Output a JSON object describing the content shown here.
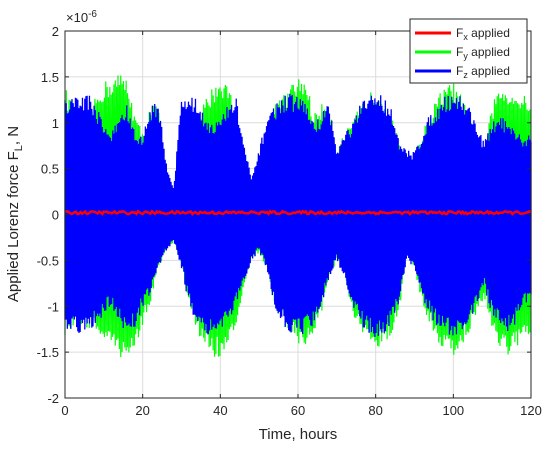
{
  "chart_data": {
    "type": "line",
    "xlabel": "Time, hours",
    "ylabel_main": "Applied Lorenz force F",
    "ylabel_sub": "L",
    "ylabel_tail": ", N",
    "exponent_prefix": "×10",
    "exponent_power": "-6",
    "xlim": [
      0,
      120
    ],
    "ylim": [
      -2,
      2
    ],
    "x_ticks": [
      0,
      20,
      40,
      60,
      80,
      100,
      120
    ],
    "x_tick_labels": [
      "0",
      "20",
      "40",
      "60",
      "80",
      "100",
      "120"
    ],
    "y_ticks": [
      -2,
      -1.5,
      -1,
      -0.5,
      0,
      0.5,
      1,
      1.5,
      2
    ],
    "y_tick_labels": [
      "-2",
      "-1.5",
      "-1",
      "-0.5",
      "0",
      "0.5",
      "1",
      "1.5",
      "2"
    ],
    "grid": true,
    "legend_position": "top-right",
    "legend": [
      {
        "main": "F",
        "sub": "x",
        "tail": " applied",
        "color": "#ff0000"
      },
      {
        "main": "F",
        "sub": "y",
        "tail": " applied",
        "color": "#00ff00"
      },
      {
        "main": "F",
        "sub": "z",
        "tail": " applied",
        "color": "#0000ff"
      }
    ],
    "series": [
      {
        "key": "Fy",
        "color": "#00ff00",
        "note_values": "upper envelope of oscillation amplitude (x10^-6) vs time (hours); signal oscillates roughly symmetric about zero",
        "envelope_upper": [
          [
            0,
            1.4
          ],
          [
            2,
            1.2
          ],
          [
            4,
            1.1
          ],
          [
            6,
            1.05
          ],
          [
            8,
            1.3
          ],
          [
            10,
            1.45
          ],
          [
            12,
            1.5
          ],
          [
            14,
            1.55
          ],
          [
            16,
            1.5
          ],
          [
            18,
            1.1
          ],
          [
            20,
            0.9
          ],
          [
            22,
            1.2
          ],
          [
            24,
            1.2
          ],
          [
            26,
            0.4
          ],
          [
            28,
            0.3
          ],
          [
            30,
            0.5
          ],
          [
            32,
            1.0
          ],
          [
            34,
            1.0
          ],
          [
            36,
            1.25
          ],
          [
            38,
            1.4
          ],
          [
            40,
            1.5
          ],
          [
            42,
            1.45
          ],
          [
            44,
            1.1
          ],
          [
            46,
            0.6
          ],
          [
            48,
            0.3
          ],
          [
            50,
            0.4
          ],
          [
            52,
            1.0
          ],
          [
            54,
            1.2
          ],
          [
            56,
            1.3
          ],
          [
            58,
            1.4
          ],
          [
            60,
            1.5
          ],
          [
            62,
            1.5
          ],
          [
            64,
            1.1
          ],
          [
            66,
            1.2
          ],
          [
            68,
            1.25
          ],
          [
            70,
            0.7
          ],
          [
            72,
            0.9
          ],
          [
            74,
            1.0
          ],
          [
            76,
            1.2
          ],
          [
            78,
            1.3
          ],
          [
            80,
            1.4
          ],
          [
            82,
            1.3
          ],
          [
            84,
            1.1
          ],
          [
            86,
            0.8
          ],
          [
            88,
            0.7
          ],
          [
            90,
            0.6
          ],
          [
            92,
            0.9
          ],
          [
            94,
            1.1
          ],
          [
            96,
            1.3
          ],
          [
            98,
            1.4
          ],
          [
            100,
            1.45
          ],
          [
            102,
            1.3
          ],
          [
            104,
            1.1
          ],
          [
            106,
            0.9
          ],
          [
            108,
            0.7
          ],
          [
            110,
            1.2
          ],
          [
            112,
            1.4
          ],
          [
            114,
            1.4
          ],
          [
            116,
            1.35
          ],
          [
            118,
            1.3
          ],
          [
            120,
            1.3
          ]
        ],
        "envelope_lower": [
          [
            0,
            -1.35
          ],
          [
            2,
            -1.25
          ],
          [
            4,
            -1.2
          ],
          [
            6,
            -1.25
          ],
          [
            8,
            -1.3
          ],
          [
            10,
            -1.4
          ],
          [
            12,
            -1.5
          ],
          [
            14,
            -1.55
          ],
          [
            16,
            -1.6
          ],
          [
            18,
            -1.55
          ],
          [
            20,
            -1.2
          ],
          [
            22,
            -1.0
          ],
          [
            24,
            -0.6
          ],
          [
            26,
            -0.4
          ],
          [
            28,
            -0.3
          ],
          [
            30,
            -0.6
          ],
          [
            32,
            -1.0
          ],
          [
            34,
            -1.3
          ],
          [
            36,
            -1.45
          ],
          [
            38,
            -1.55
          ],
          [
            40,
            -1.58
          ],
          [
            42,
            -1.5
          ],
          [
            44,
            -1.2
          ],
          [
            46,
            -0.9
          ],
          [
            48,
            -0.5
          ],
          [
            50,
            -0.45
          ],
          [
            52,
            -0.6
          ],
          [
            54,
            -1.0
          ],
          [
            56,
            -1.2
          ],
          [
            58,
            -1.3
          ],
          [
            60,
            -1.4
          ],
          [
            62,
            -1.5
          ],
          [
            64,
            -1.3
          ],
          [
            66,
            -1.1
          ],
          [
            68,
            -0.7
          ],
          [
            70,
            -0.5
          ],
          [
            72,
            -0.7
          ],
          [
            74,
            -1.1
          ],
          [
            76,
            -1.3
          ],
          [
            78,
            -1.4
          ],
          [
            80,
            -1.5
          ],
          [
            82,
            -1.45
          ],
          [
            84,
            -1.3
          ],
          [
            86,
            -1.1
          ],
          [
            88,
            -0.4
          ],
          [
            90,
            -0.6
          ],
          [
            92,
            -1.0
          ],
          [
            94,
            -1.2
          ],
          [
            96,
            -1.4
          ],
          [
            98,
            -1.5
          ],
          [
            100,
            -1.55
          ],
          [
            102,
            -1.45
          ],
          [
            104,
            -1.3
          ],
          [
            106,
            -1.1
          ],
          [
            108,
            -0.9
          ],
          [
            110,
            -1.3
          ],
          [
            112,
            -1.45
          ],
          [
            114,
            -1.55
          ],
          [
            116,
            -1.5
          ],
          [
            118,
            -1.4
          ],
          [
            120,
            -1.3
          ]
        ]
      },
      {
        "key": "Fz",
        "color": "#0000ff",
        "envelope_upper": [
          [
            0,
            1.25
          ],
          [
            2,
            1.3
          ],
          [
            4,
            1.32
          ],
          [
            6,
            1.33
          ],
          [
            8,
            1.2
          ],
          [
            10,
            1.0
          ],
          [
            12,
            0.9
          ],
          [
            14,
            1.1
          ],
          [
            16,
            1.2
          ],
          [
            18,
            0.9
          ],
          [
            20,
            0.85
          ],
          [
            22,
            1.2
          ],
          [
            24,
            1.25
          ],
          [
            26,
            0.6
          ],
          [
            28,
            0.3
          ],
          [
            30,
            1.3
          ],
          [
            32,
            1.32
          ],
          [
            34,
            1.25
          ],
          [
            36,
            1.1
          ],
          [
            38,
            1.0
          ],
          [
            40,
            1.05
          ],
          [
            42,
            1.2
          ],
          [
            44,
            1.3
          ],
          [
            46,
            0.8
          ],
          [
            48,
            0.4
          ],
          [
            50,
            0.7
          ],
          [
            52,
            1.1
          ],
          [
            54,
            1.2
          ],
          [
            56,
            1.3
          ],
          [
            58,
            1.32
          ],
          [
            60,
            1.3
          ],
          [
            62,
            1.25
          ],
          [
            64,
            1.0
          ],
          [
            66,
            1.1
          ],
          [
            68,
            1.25
          ],
          [
            70,
            0.7
          ],
          [
            72,
            0.9
          ],
          [
            74,
            1.0
          ],
          [
            76,
            1.2
          ],
          [
            78,
            1.3
          ],
          [
            80,
            1.35
          ],
          [
            82,
            1.3
          ],
          [
            84,
            1.2
          ],
          [
            86,
            0.8
          ],
          [
            88,
            0.7
          ],
          [
            90,
            0.7
          ],
          [
            92,
            0.9
          ],
          [
            94,
            1.1
          ],
          [
            96,
            1.2
          ],
          [
            98,
            1.3
          ],
          [
            100,
            1.35
          ],
          [
            102,
            1.3
          ],
          [
            104,
            1.2
          ],
          [
            106,
            1.0
          ],
          [
            108,
            0.8
          ],
          [
            110,
            1.0
          ],
          [
            112,
            1.1
          ],
          [
            114,
            1.0
          ],
          [
            116,
            0.9
          ],
          [
            118,
            0.85
          ],
          [
            120,
            0.9
          ]
        ],
        "envelope_lower": [
          [
            0,
            -1.3
          ],
          [
            2,
            -1.3
          ],
          [
            4,
            -1.32
          ],
          [
            6,
            -1.3
          ],
          [
            8,
            -1.2
          ],
          [
            10,
            -1.1
          ],
          [
            12,
            -1.0
          ],
          [
            14,
            -1.2
          ],
          [
            16,
            -1.3
          ],
          [
            18,
            -1.25
          ],
          [
            20,
            -1.0
          ],
          [
            22,
            -0.9
          ],
          [
            24,
            -0.6
          ],
          [
            26,
            -0.4
          ],
          [
            28,
            -0.3
          ],
          [
            30,
            -0.6
          ],
          [
            32,
            -1.0
          ],
          [
            34,
            -1.2
          ],
          [
            36,
            -1.3
          ],
          [
            38,
            -1.32
          ],
          [
            40,
            -1.3
          ],
          [
            42,
            -1.2
          ],
          [
            44,
            -1.0
          ],
          [
            46,
            -0.8
          ],
          [
            48,
            -0.5
          ],
          [
            50,
            -0.4
          ],
          [
            52,
            -0.6
          ],
          [
            54,
            -1.0
          ],
          [
            56,
            -1.2
          ],
          [
            58,
            -1.3
          ],
          [
            60,
            -1.32
          ],
          [
            62,
            -1.3
          ],
          [
            64,
            -1.2
          ],
          [
            66,
            -1.0
          ],
          [
            68,
            -0.7
          ],
          [
            70,
            -0.5
          ],
          [
            72,
            -0.7
          ],
          [
            74,
            -1.0
          ],
          [
            76,
            -1.2
          ],
          [
            78,
            -1.3
          ],
          [
            80,
            -1.35
          ],
          [
            82,
            -1.3
          ],
          [
            84,
            -1.2
          ],
          [
            86,
            -1.0
          ],
          [
            88,
            -0.5
          ],
          [
            90,
            -0.6
          ],
          [
            92,
            -0.9
          ],
          [
            94,
            -1.1
          ],
          [
            96,
            -1.25
          ],
          [
            98,
            -1.3
          ],
          [
            100,
            -1.35
          ],
          [
            102,
            -1.3
          ],
          [
            104,
            -1.2
          ],
          [
            106,
            -1.0
          ],
          [
            108,
            -0.8
          ],
          [
            110,
            -1.1
          ],
          [
            112,
            -1.25
          ],
          [
            114,
            -1.3
          ],
          [
            116,
            -1.2
          ],
          [
            118,
            -1.0
          ],
          [
            120,
            -0.9
          ]
        ]
      },
      {
        "key": "Fx",
        "color": "#ff0000",
        "baseline": 0.02,
        "amplitude": 0.03
      }
    ]
  }
}
